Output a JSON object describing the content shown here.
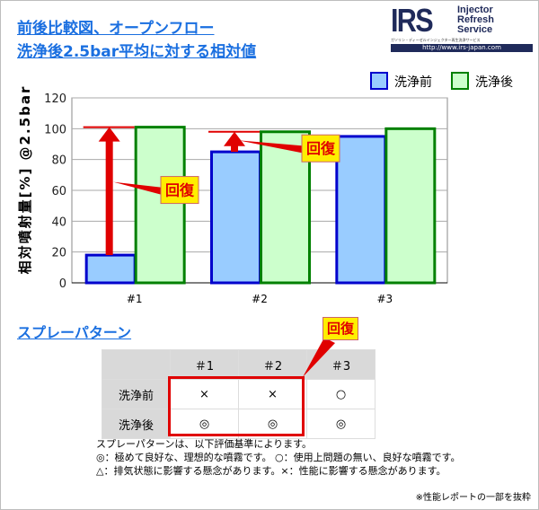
{
  "header": {
    "title_line1": "前後比較図、オープンフロー",
    "title_line2": "洗浄後2.5bar平均に対する相対値"
  },
  "logo": {
    "letters": "IRS",
    "name_lines": [
      "Injector",
      "Refresh",
      "Service"
    ],
    "tagline": "ガソリン・ディーゼルインジェクター再生洗浄サービス",
    "url": "http://www.irs-japan.com"
  },
  "chart_data": {
    "type": "bar",
    "categories": [
      "#1",
      "#2",
      "#3"
    ],
    "series": [
      {
        "name": "洗浄前",
        "values": [
          18,
          85,
          95
        ],
        "color": "#99ccff",
        "edge": "#0000cc"
      },
      {
        "name": "洗浄後",
        "values": [
          101,
          98,
          100
        ],
        "color": "#ccffcc",
        "edge": "#008000"
      }
    ],
    "ylabel": "相対噴射量[%] @2.5bar",
    "ylim": [
      0,
      120
    ],
    "yticks": [
      0,
      20,
      40,
      60,
      80,
      100,
      120
    ],
    "grid": true,
    "legend": "top-right",
    "annotations": [
      {
        "text": "回復",
        "category": "#1"
      },
      {
        "text": "回復",
        "category": "#2"
      }
    ]
  },
  "spray": {
    "title": "スプレーパターン",
    "columns": [
      "",
      "＃1",
      "＃2",
      "＃3"
    ],
    "rows": [
      [
        "洗浄前",
        "×",
        "×",
        "○"
      ],
      [
        "洗浄後",
        "◎",
        "◎",
        "◎"
      ]
    ],
    "callout": "回復",
    "notes": [
      "スプレーパターンは、以下評価基準によります。",
      "◎：極めて良好な、理想的な噴霧です。 ○：使用上問題の無い、良好な噴霧です。",
      "△：排気状態に影響する懸念があります。×：性能に影響する懸念があります。"
    ],
    "footnote": "※性能レポートの一部を抜粋"
  }
}
